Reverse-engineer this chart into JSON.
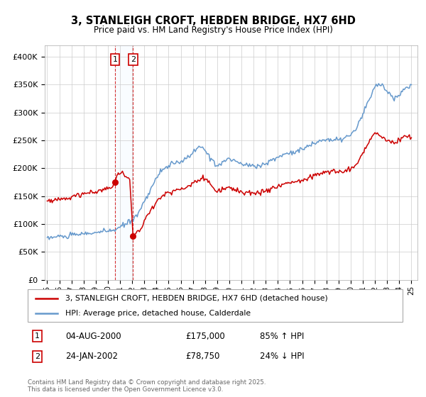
{
  "title": "3, STANLEIGH CROFT, HEBDEN BRIDGE, HX7 6HD",
  "subtitle": "Price paid vs. HM Land Registry's House Price Index (HPI)",
  "legend_property": "3, STANLEIGH CROFT, HEBDEN BRIDGE, HX7 6HD (detached house)",
  "legend_hpi": "HPI: Average price, detached house, Calderdale",
  "t1_label": "1",
  "t1_date": "04-AUG-2000",
  "t1_price": "£175,000",
  "t1_hpi": "85% ↑ HPI",
  "t1_year": 2000.59,
  "t1_value": 175000,
  "t2_label": "2",
  "t2_date": "24-JAN-2002",
  "t2_price": "£78,750",
  "t2_hpi": "24% ↓ HPI",
  "t2_year": 2002.07,
  "t2_value": 78750,
  "footer": "Contains HM Land Registry data © Crown copyright and database right 2025.\nThis data is licensed under the Open Government Licence v3.0.",
  "property_color": "#cc0000",
  "hpi_color": "#6699cc",
  "ylim": [
    0,
    420000
  ],
  "yticks": [
    0,
    50000,
    100000,
    150000,
    200000,
    250000,
    300000,
    350000,
    400000
  ],
  "xlim_start": 1994.8,
  "xlim_end": 2025.5,
  "grid_color": "#cccccc",
  "shade_color": "#ddeeff"
}
